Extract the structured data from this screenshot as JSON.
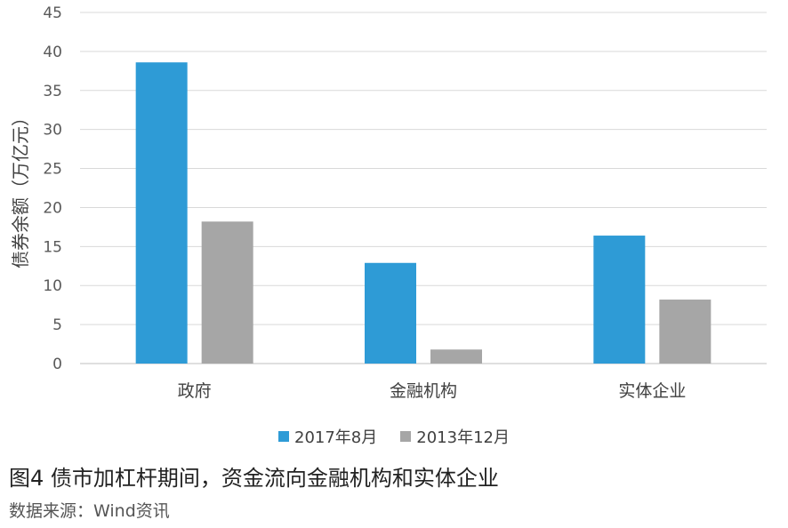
{
  "chart_data": {
    "type": "bar",
    "ylabel": "债券余额（万亿元）",
    "ylim": [
      0,
      45
    ],
    "yticks": [
      0,
      5,
      10,
      15,
      20,
      25,
      30,
      35,
      40,
      45
    ],
    "categories": [
      "政府",
      "金融机构",
      "实体企业"
    ],
    "series": [
      {
        "name": "2017年8月",
        "color": "#2e9bd6",
        "values": [
          38.6,
          12.9,
          16.4
        ]
      },
      {
        "name": "2013年12月",
        "color": "#a6a6a6",
        "values": [
          18.2,
          1.8,
          8.2
        ]
      }
    ],
    "grid": true,
    "legend_position": "bottom"
  },
  "caption": "图4 债市加杠杆期间，资金流向金融机构和实体企业",
  "source": "数据来源：Wind资讯"
}
